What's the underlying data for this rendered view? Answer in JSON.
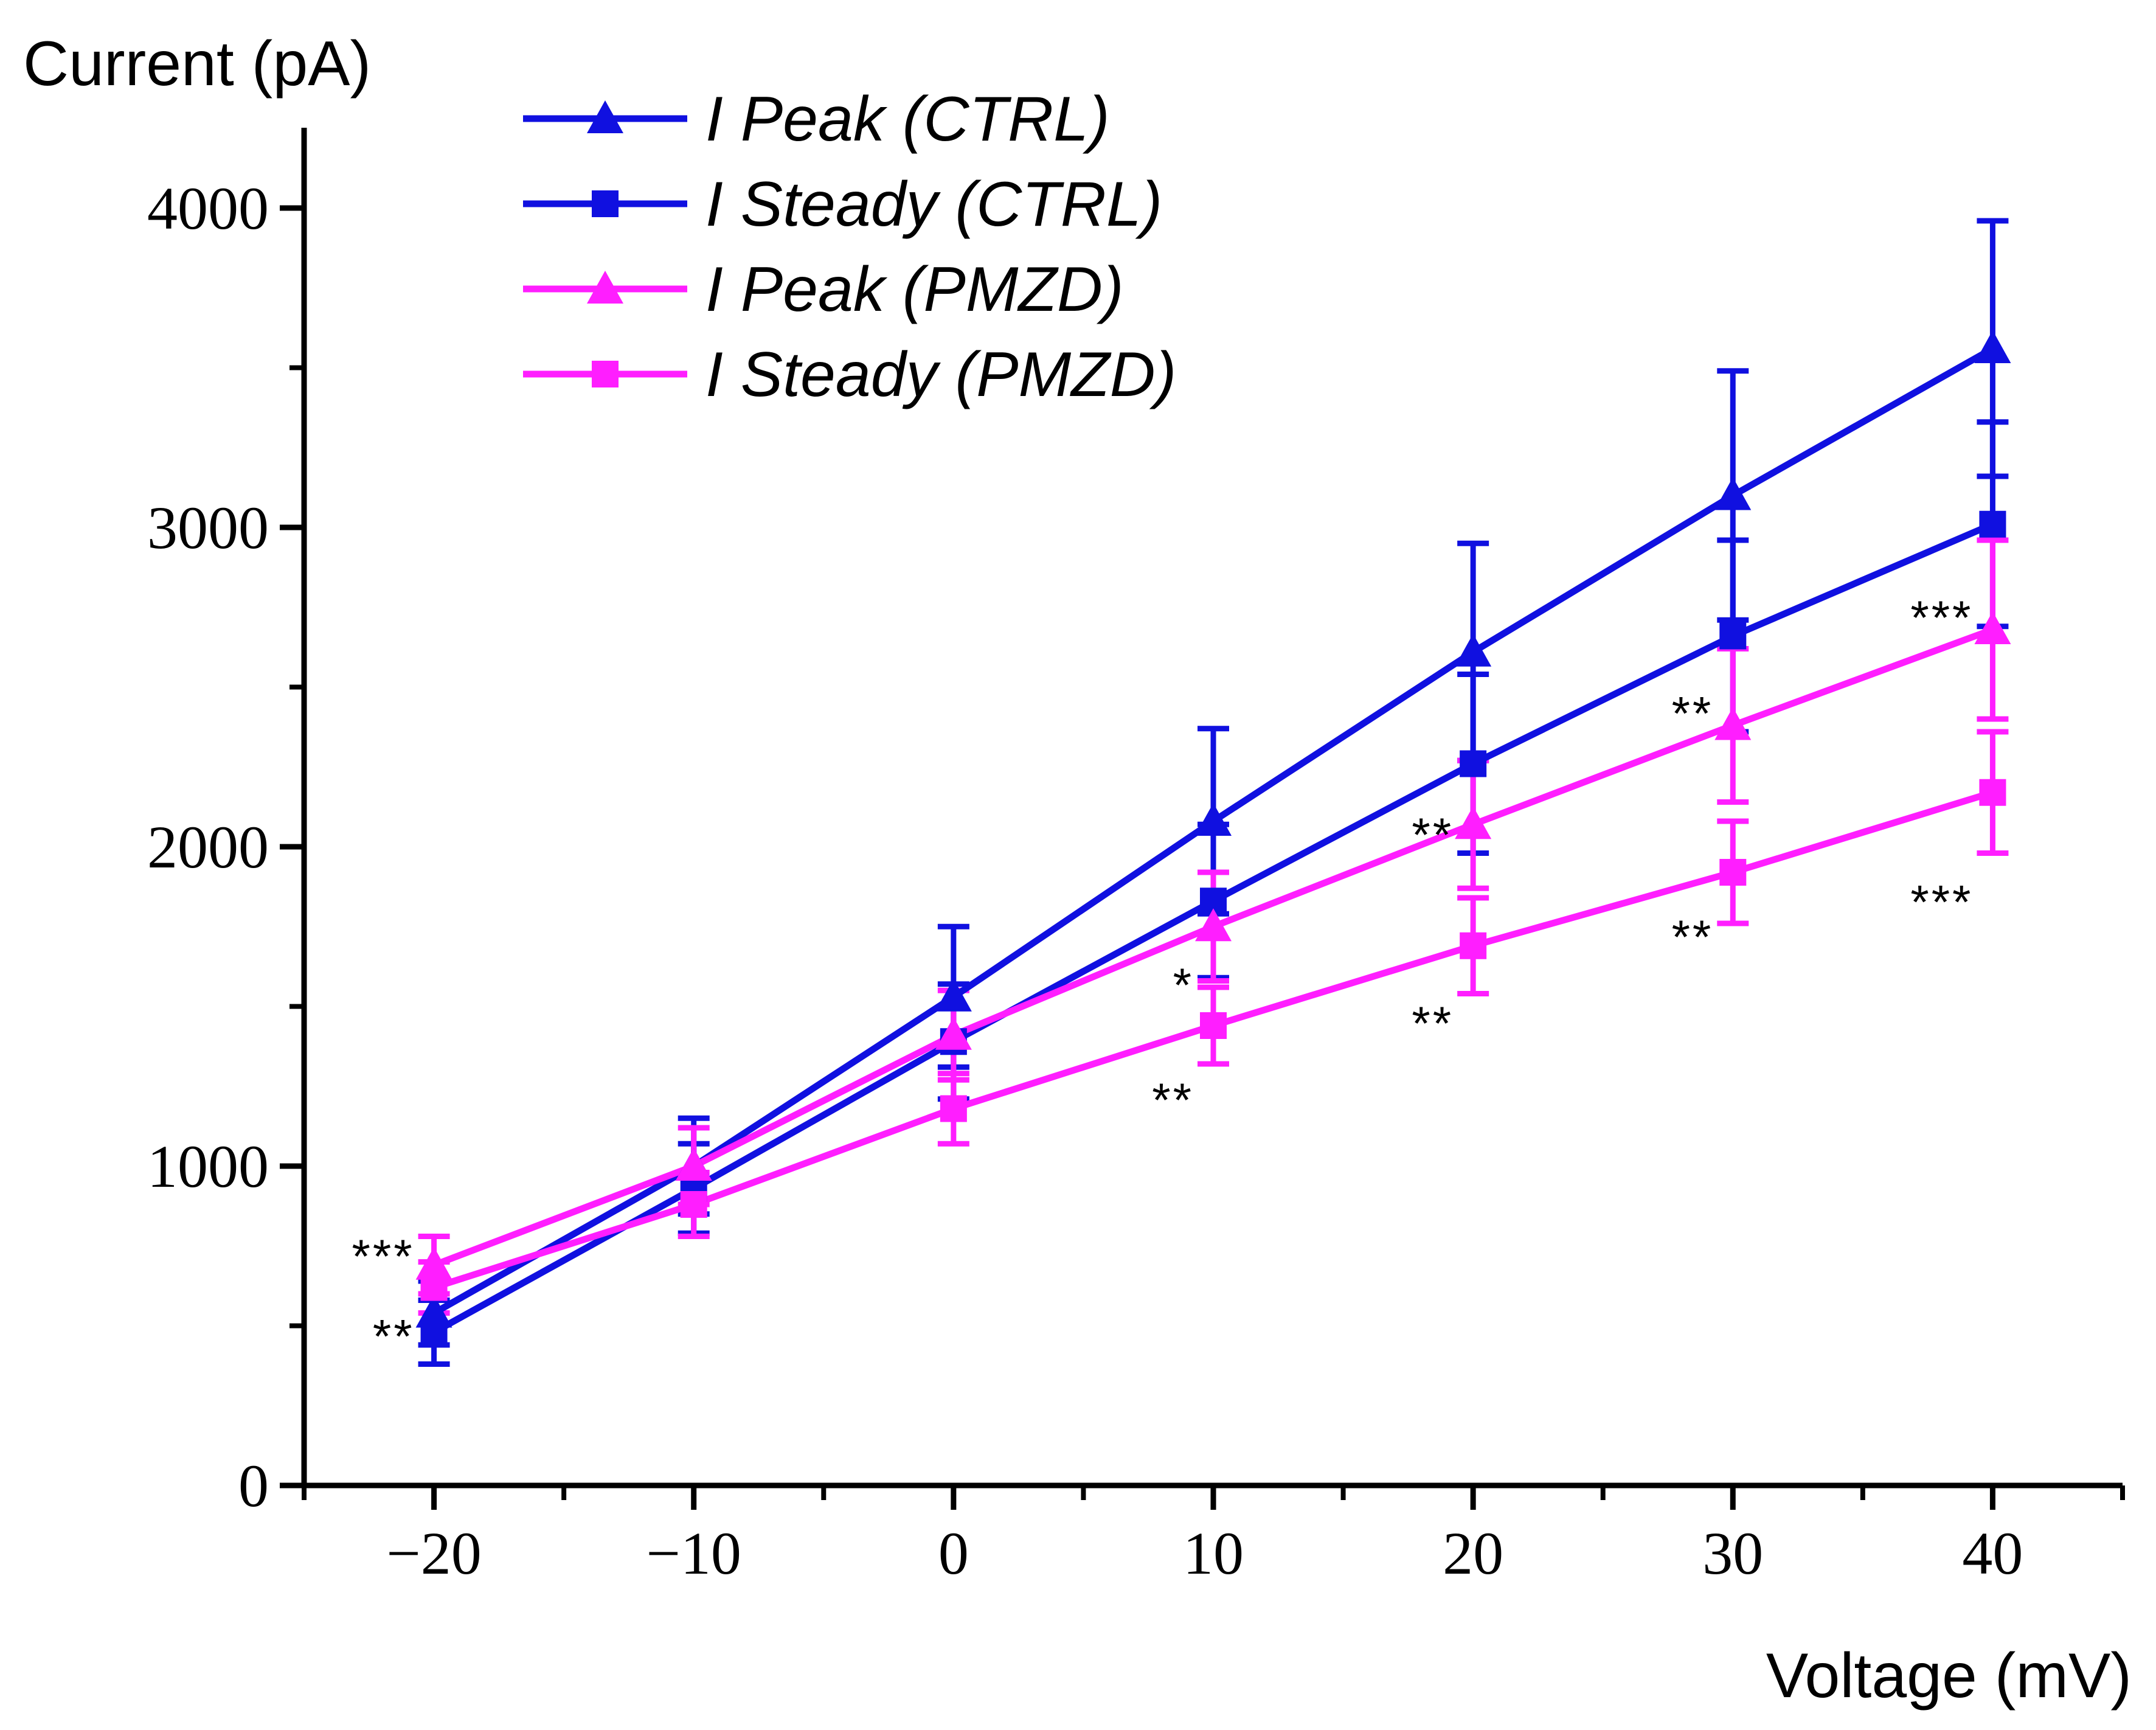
{
  "chart_data": {
    "type": "line",
    "title": "",
    "xlabel": "Voltage (mV)",
    "ylabel": "Current (pA)",
    "xlim": [
      -25,
      45
    ],
    "ylim": [
      0,
      4300
    ],
    "x": [
      -20,
      -10,
      0,
      10,
      20,
      30,
      40
    ],
    "x_ticks": [
      -20,
      -10,
      0,
      10,
      20,
      30,
      40
    ],
    "x_tick_labels": [
      "−20",
      "−10",
      "0",
      "10",
      "20",
      "30",
      "40"
    ],
    "y_ticks": [
      0,
      1000,
      2000,
      3000,
      4000
    ],
    "y_tick_labels": [
      "0",
      "1000",
      "2000",
      "3000",
      "4000"
    ],
    "grid": false,
    "legend_position": "top-center",
    "series": [
      {
        "name": "I Peak (CTRL)",
        "color": "#1010E0",
        "marker": "triangle",
        "values": [
          540,
          1000,
          1530,
          2080,
          2610,
          3100,
          3560
        ],
        "errors": [
          100,
          150,
          220,
          290,
          340,
          390,
          400
        ]
      },
      {
        "name": "I Steady (CTRL)",
        "color": "#1010E0",
        "marker": "square",
        "values": [
          480,
          930,
          1390,
          1830,
          2260,
          2660,
          3010
        ],
        "errors": [
          100,
          140,
          180,
          240,
          280,
          300,
          320
        ]
      },
      {
        "name": "I Peak (PMZD)",
        "color": "#FF1EFF",
        "marker": "triangle",
        "values": [
          690,
          1000,
          1410,
          1750,
          2070,
          2380,
          2680
        ],
        "errors": [
          90,
          120,
          140,
          170,
          200,
          240,
          280
        ]
      },
      {
        "name": "I Steady (PMZD)",
        "color": "#FF1EFF",
        "marker": "square",
        "values": [
          620,
          880,
          1180,
          1440,
          1690,
          1920,
          2170
        ],
        "errors": [
          80,
          100,
          110,
          120,
          150,
          160,
          190
        ]
      }
    ],
    "annotations": [
      {
        "text": "***",
        "x": -20,
        "y": 720
      },
      {
        "text": "**",
        "x": -20,
        "y": 470
      },
      {
        "text": "*",
        "x": 10,
        "y": 1570
      },
      {
        "text": "**",
        "x": 10,
        "y": 1210
      },
      {
        "text": "**",
        "x": 20,
        "y": 2040
      },
      {
        "text": "**",
        "x": 20,
        "y": 1450
      },
      {
        "text": "**",
        "x": 30,
        "y": 2420
      },
      {
        "text": "**",
        "x": 30,
        "y": 1720
      },
      {
        "text": "***",
        "x": 40,
        "y": 2720
      },
      {
        "text": "***",
        "x": 40,
        "y": 1830
      }
    ]
  }
}
